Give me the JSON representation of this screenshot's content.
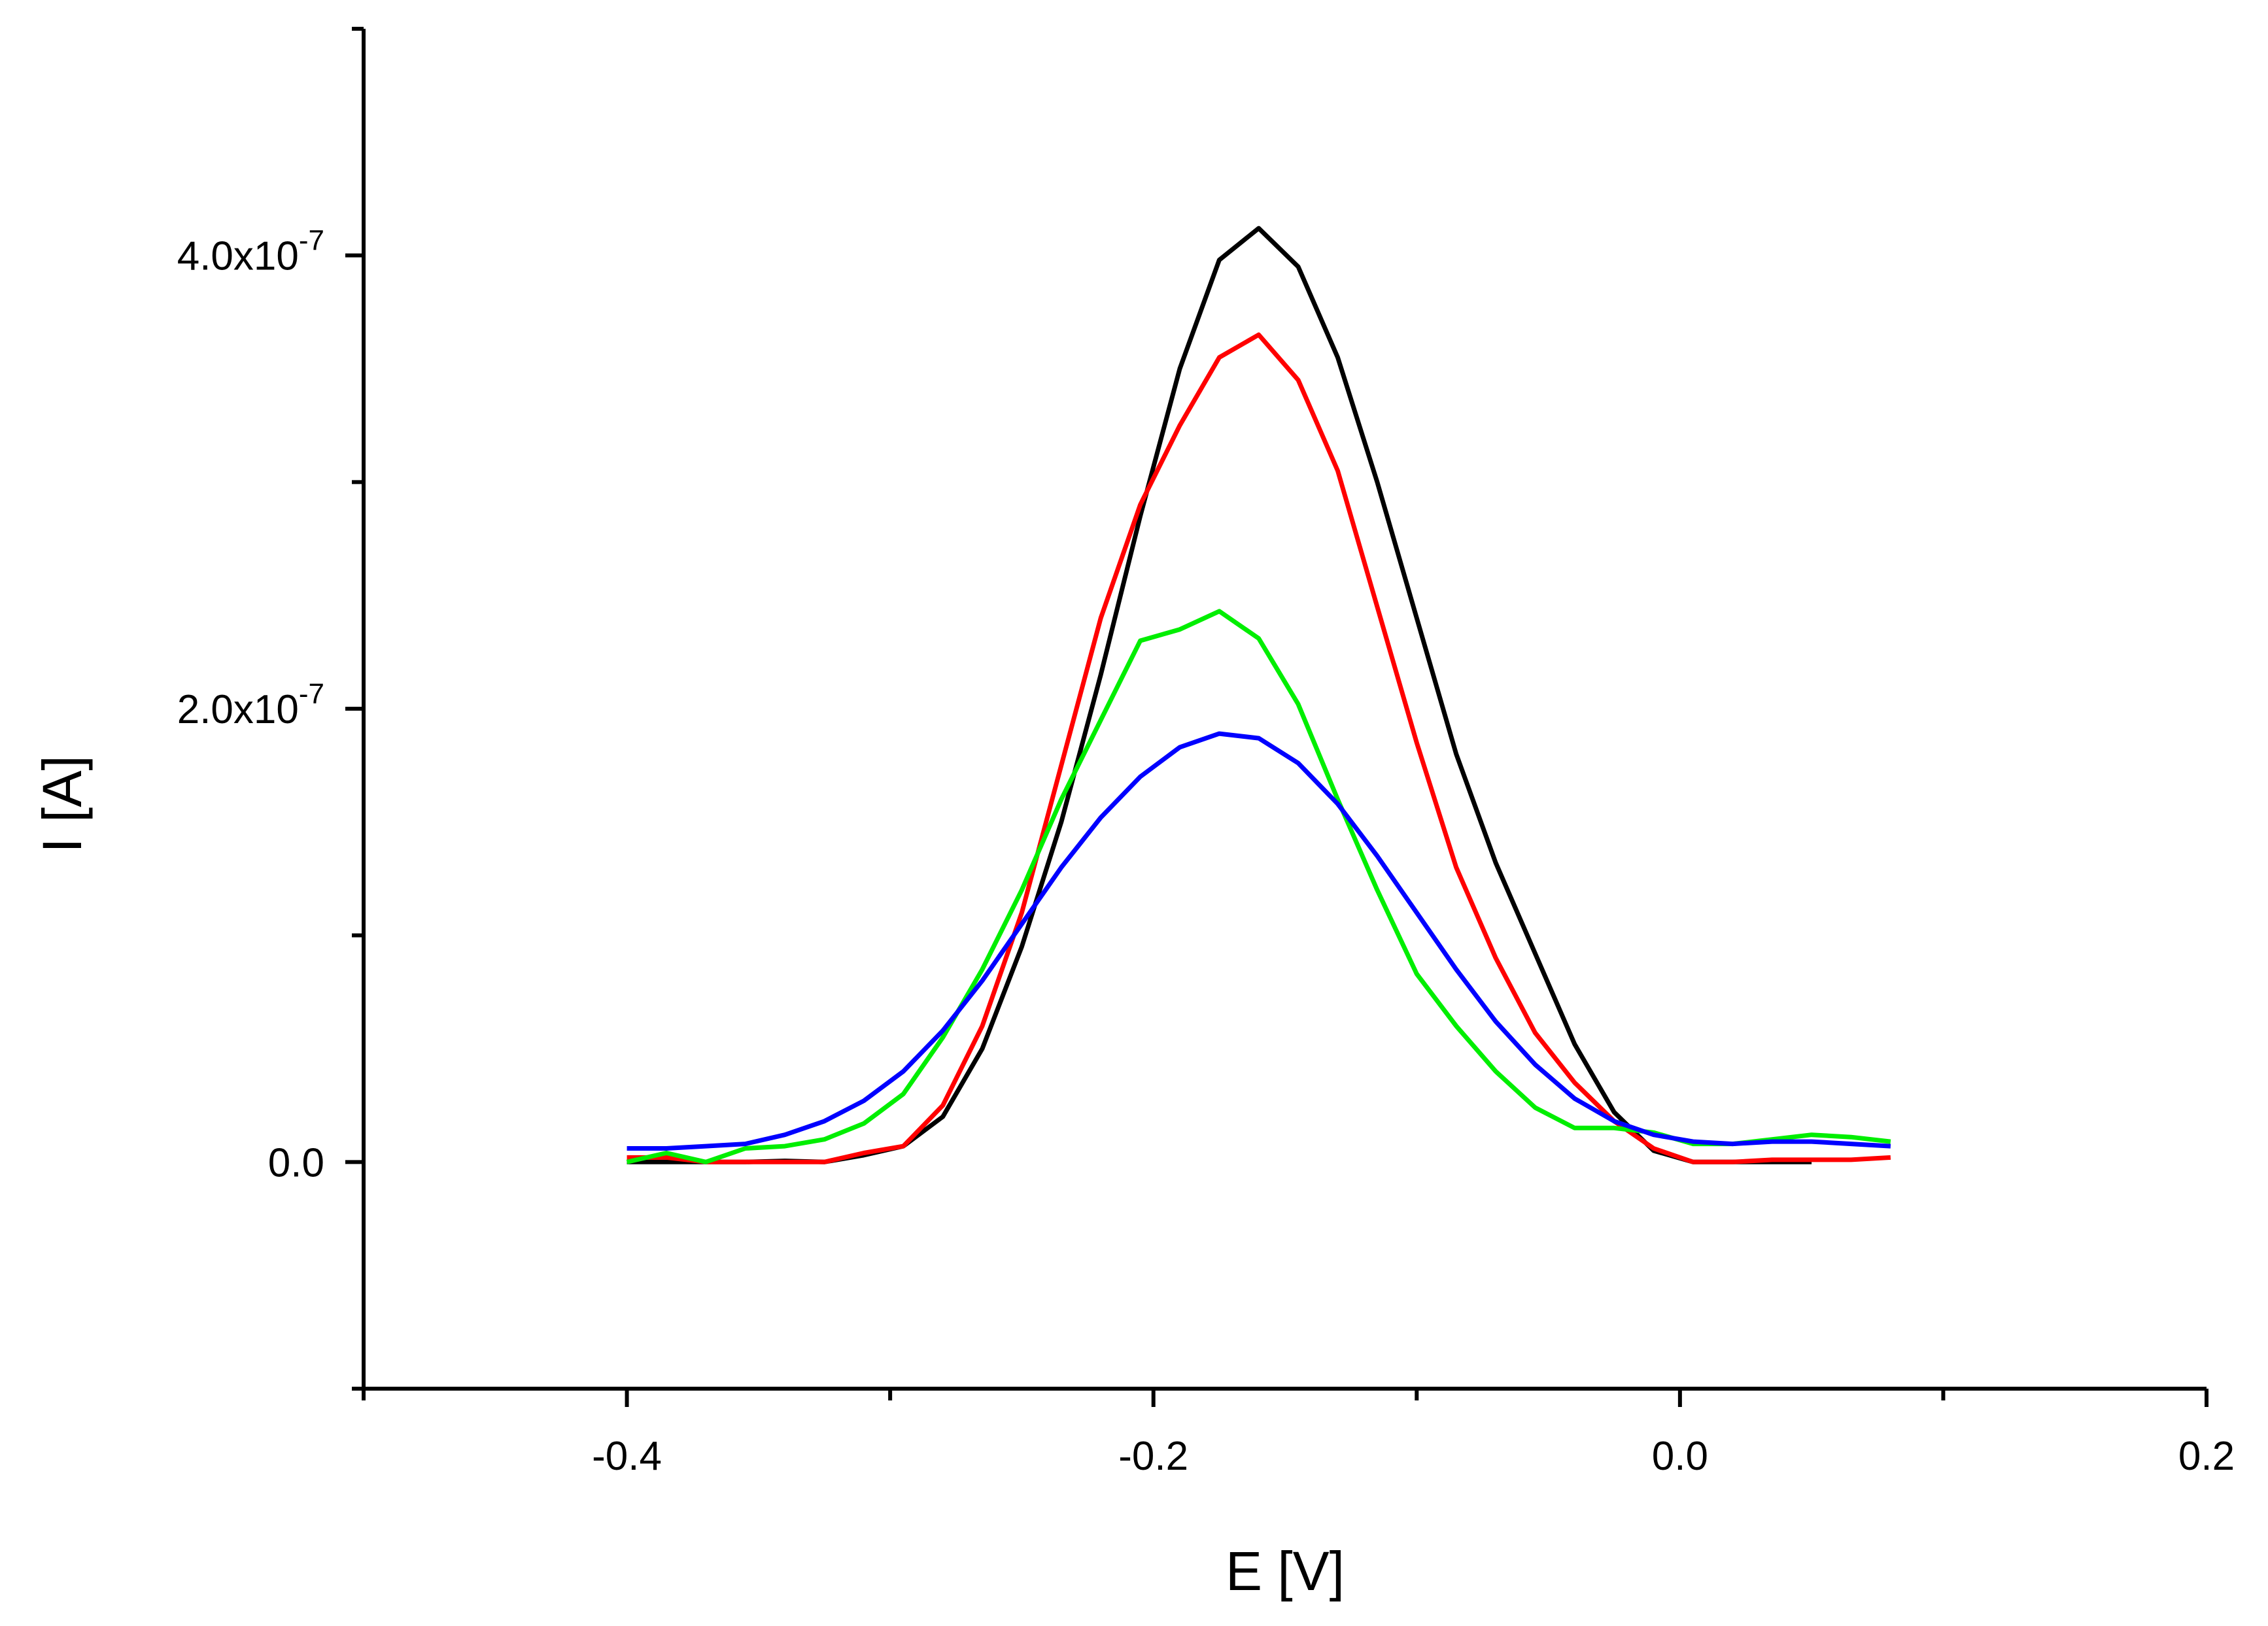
{
  "chart_data": {
    "type": "line",
    "title": "",
    "xlabel": "E [V]",
    "ylabel": "I [A]",
    "xlim": [
      -0.5,
      0.2
    ],
    "ylim": [
      -1e-07,
      5e-07
    ],
    "grid": false,
    "legend": "none",
    "x_ticks": [
      {
        "value": -0.4,
        "label": "-0.4"
      },
      {
        "value": -0.2,
        "label": "-0.2"
      },
      {
        "value": 0.0,
        "label": "0.0"
      },
      {
        "value": 0.2,
        "label": "0.2"
      }
    ],
    "x_minor_ticks": [
      -0.5,
      -0.3,
      -0.1,
      0.1
    ],
    "y_ticks": [
      {
        "value": 0.0,
        "mantissa": "0.0",
        "exponent": ""
      },
      {
        "value": 2e-07,
        "mantissa": "2.0x10",
        "exponent": "-7"
      },
      {
        "value": 4e-07,
        "mantissa": "4.0x10",
        "exponent": "-7"
      }
    ],
    "y_minor_ticks": [
      -1e-07,
      1e-07,
      3e-07,
      5e-07
    ],
    "series": [
      {
        "color": "#000000",
        "x": [
          -0.4,
          -0.385,
          -0.37,
          -0.355,
          -0.34,
          -0.325,
          -0.31,
          -0.295,
          -0.28,
          -0.265,
          -0.25,
          -0.235,
          -0.22,
          -0.205,
          -0.19,
          -0.175,
          -0.16,
          -0.145,
          -0.13,
          -0.115,
          -0.1,
          -0.085,
          -0.07,
          -0.055,
          -0.04,
          -0.025,
          -0.01,
          0.005,
          0.02,
          0.035,
          0.05
        ],
        "y": [
          0.0,
          0.0,
          0.0,
          0.0,
          5e-10,
          0.0,
          3e-09,
          7e-09,
          2e-08,
          5e-08,
          9.5e-08,
          1.5e-07,
          2.15e-07,
          2.85e-07,
          3.5e-07,
          3.98e-07,
          4.12e-07,
          3.95e-07,
          3.55e-07,
          3e-07,
          2.4e-07,
          1.8e-07,
          1.32e-07,
          9.2e-08,
          5.2e-08,
          2.2e-08,
          5e-09,
          0.0,
          0.0,
          0.0,
          0.0
        ]
      },
      {
        "color": "#ff0000",
        "x": [
          -0.4,
          -0.385,
          -0.37,
          -0.355,
          -0.34,
          -0.325,
          -0.31,
          -0.295,
          -0.28,
          -0.265,
          -0.25,
          -0.235,
          -0.22,
          -0.205,
          -0.19,
          -0.175,
          -0.16,
          -0.145,
          -0.13,
          -0.115,
          -0.1,
          -0.085,
          -0.07,
          -0.055,
          -0.04,
          -0.025,
          -0.01,
          0.005,
          0.02,
          0.035,
          0.05,
          0.065,
          0.08
        ],
        "y": [
          2e-09,
          2e-09,
          0.0,
          0.0,
          0.0,
          0.0,
          4e-09,
          7e-09,
          2.5e-08,
          6e-08,
          1.1e-07,
          1.75e-07,
          2.4e-07,
          2.9e-07,
          3.25e-07,
          3.55e-07,
          3.65e-07,
          3.45e-07,
          3.05e-07,
          2.45e-07,
          1.85e-07,
          1.3e-07,
          9e-08,
          5.7e-08,
          3.5e-08,
          1.8e-08,
          6e-09,
          0.0,
          0.0,
          1e-09,
          1e-09,
          1e-09,
          2e-09
        ]
      },
      {
        "color": "#00ee00",
        "x": [
          -0.4,
          -0.385,
          -0.37,
          -0.355,
          -0.34,
          -0.325,
          -0.31,
          -0.295,
          -0.28,
          -0.265,
          -0.25,
          -0.235,
          -0.22,
          -0.205,
          -0.19,
          -0.175,
          -0.16,
          -0.145,
          -0.13,
          -0.115,
          -0.1,
          -0.085,
          -0.07,
          -0.055,
          -0.04,
          -0.025,
          -0.01,
          0.005,
          0.02,
          0.035,
          0.05,
          0.065,
          0.08
        ],
        "y": [
          0.0,
          4e-09,
          0.0,
          6e-09,
          7e-09,
          1e-08,
          1.7e-08,
          3e-08,
          5.5e-08,
          8.5e-08,
          1.2e-07,
          1.6e-07,
          1.95e-07,
          2.3e-07,
          2.35e-07,
          2.43e-07,
          2.31e-07,
          2.02e-07,
          1.6e-07,
          1.2e-07,
          8.3e-08,
          6e-08,
          4e-08,
          2.4e-08,
          1.5e-08,
          1.5e-08,
          1.3e-08,
          8e-09,
          8e-09,
          1e-08,
          1.2e-08,
          1.1e-08,
          9e-09
        ]
      },
      {
        "color": "#0000ff",
        "x": [
          -0.4,
          -0.385,
          -0.37,
          -0.355,
          -0.34,
          -0.325,
          -0.31,
          -0.295,
          -0.28,
          -0.265,
          -0.25,
          -0.235,
          -0.22,
          -0.205,
          -0.19,
          -0.175,
          -0.16,
          -0.145,
          -0.13,
          -0.115,
          -0.1,
          -0.085,
          -0.07,
          -0.055,
          -0.04,
          -0.025,
          -0.01,
          0.005,
          0.02,
          0.035,
          0.05,
          0.065,
          0.08
        ],
        "y": [
          6e-09,
          6e-09,
          7e-09,
          8e-09,
          1.2e-08,
          1.8e-08,
          2.7e-08,
          4e-08,
          5.8e-08,
          8e-08,
          1.05e-07,
          1.3e-07,
          1.52e-07,
          1.7e-07,
          1.83e-07,
          1.89e-07,
          1.87e-07,
          1.76e-07,
          1.58e-07,
          1.35e-07,
          1.1e-07,
          8.5e-08,
          6.2e-08,
          4.3e-08,
          2.8e-08,
          1.8e-08,
          1.2e-08,
          9e-09,
          8e-09,
          9e-09,
          9e-09,
          8e-09,
          7e-09
        ]
      }
    ]
  }
}
